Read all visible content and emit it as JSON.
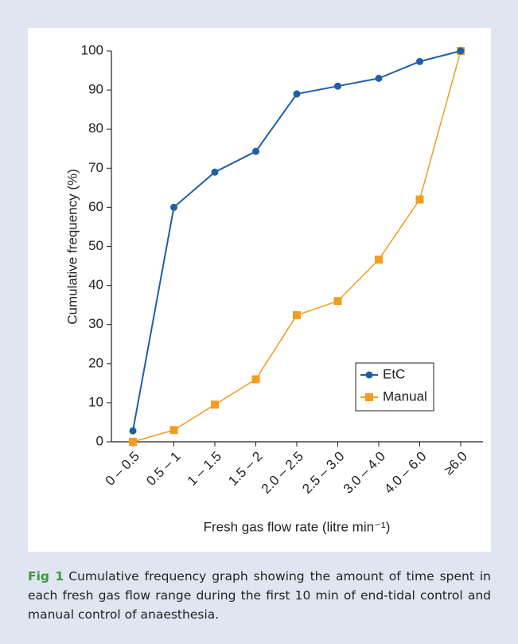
{
  "chart_data": {
    "type": "line",
    "y_label": "Cumulative frequency (%)",
    "x_label": "Fresh gas flow rate (litre min⁻¹)",
    "categories": [
      "0 – 0.5",
      "0.5 – 1",
      "1 – 1.5",
      "1.5 – 2",
      "2.0 – 2.5",
      "2.5 – 3.0",
      "3.0 – 4.0",
      "4.0 – 6.0",
      "≥6.0"
    ],
    "series": [
      {
        "name": "EtC",
        "color": "#1f5fa6",
        "marker": "circle",
        "values": [
          2.8,
          60,
          69,
          74.3,
          89,
          91,
          93,
          97.3,
          100
        ]
      },
      {
        "name": "Manual",
        "color": "#f39c1f",
        "marker": "square",
        "values": [
          0,
          3,
          9.5,
          16,
          32.4,
          36,
          46.6,
          62,
          100
        ]
      }
    ],
    "ylim": [
      0,
      100
    ],
    "yticks": [
      0,
      10,
      20,
      30,
      40,
      50,
      60,
      70,
      80,
      90,
      100
    ],
    "grid": false,
    "legend": "lower right"
  },
  "caption": {
    "label": "Fig 1",
    "text": "Cumulative frequency graph showing the amount of time spent in each fresh gas flow range during the first 10 min of end-tidal control and manual control of anaesthesia."
  }
}
